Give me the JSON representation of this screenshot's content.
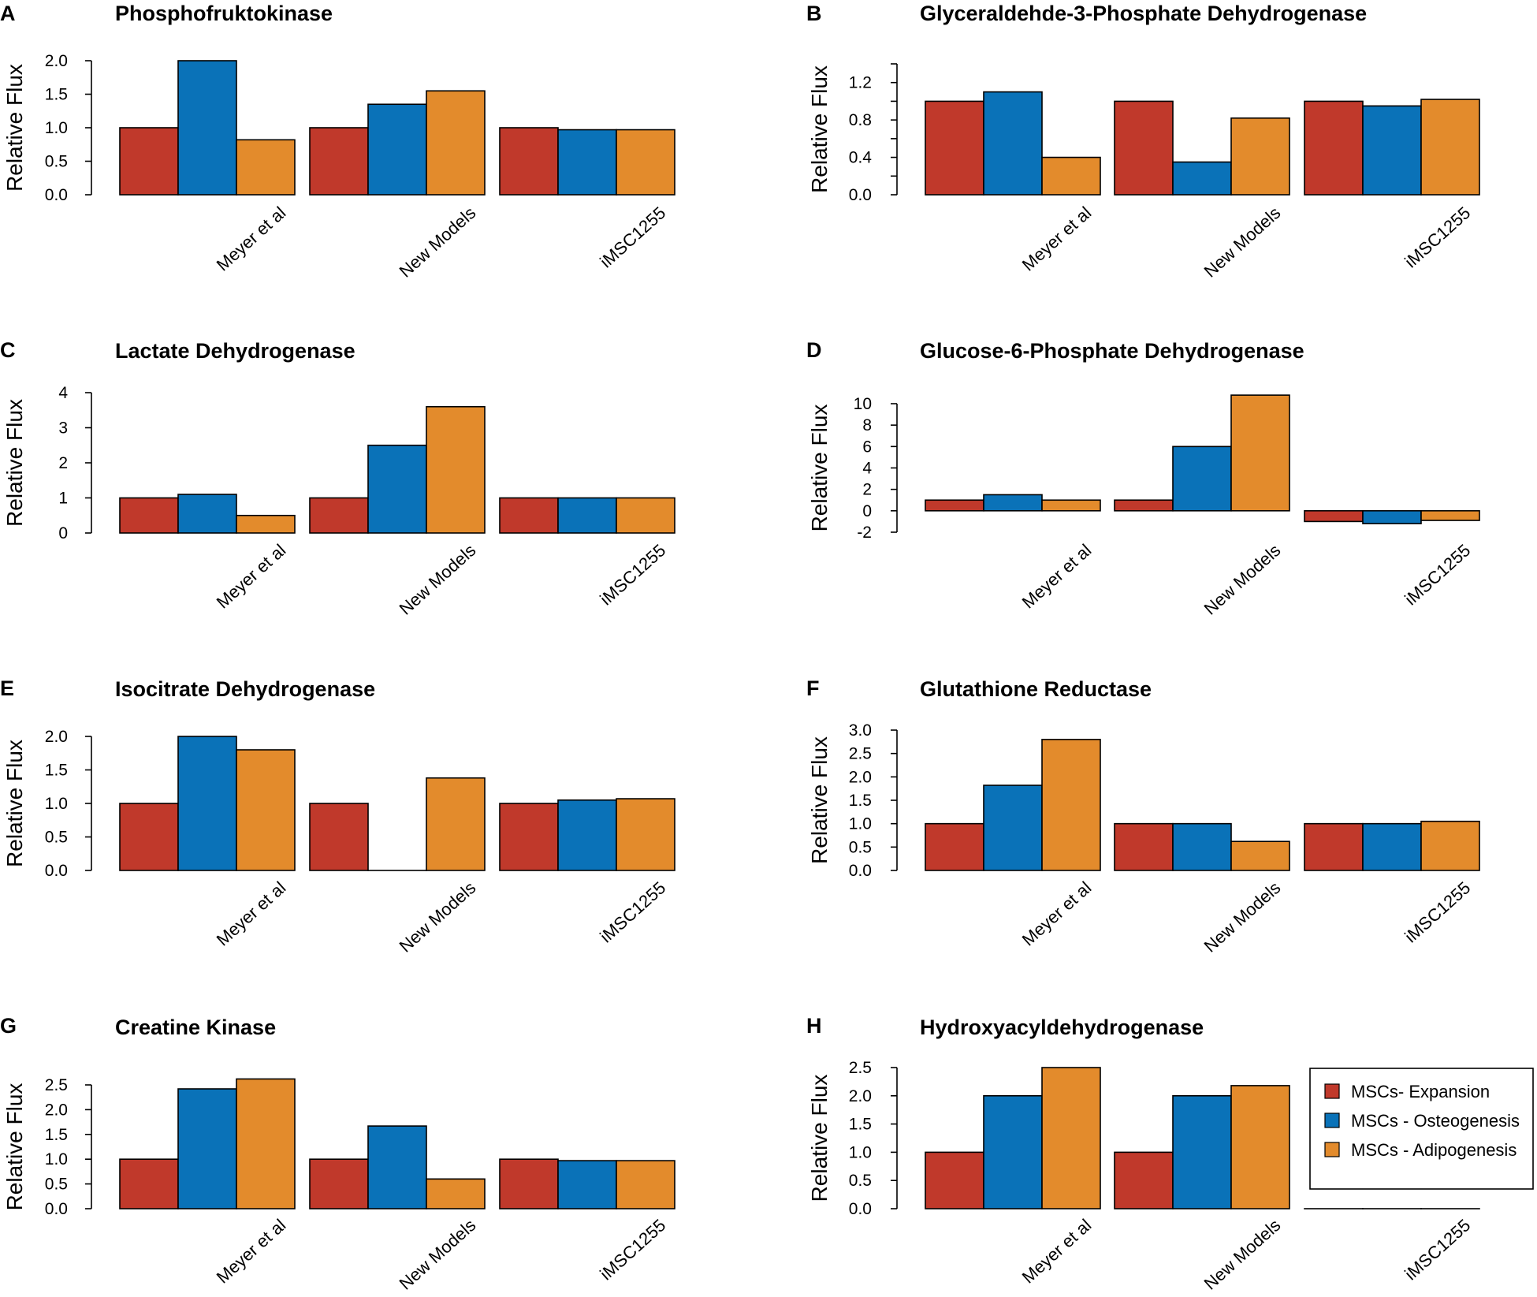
{
  "colors": {
    "expansion": "#c0392b",
    "osteogenesis": "#0a72b8",
    "adipogenesis": "#e38b2c",
    "outline": "#000000"
  },
  "legend": {
    "items": [
      {
        "label": "MSCs- Expansion",
        "color_key": "expansion"
      },
      {
        "label": "MSCs - Osteogenesis",
        "color_key": "osteogenesis"
      },
      {
        "label": "MSCs - Adipogenesis",
        "color_key": "adipogenesis"
      }
    ]
  },
  "chart_data": [
    {
      "panel": "A",
      "type": "bar",
      "title": "Phosphofruktokinase",
      "ylabel": "Relative Flux",
      "ylim": [
        0,
        2.0
      ],
      "yticks": [
        "0.0",
        "0.5",
        "1.0",
        "1.5",
        "2.0"
      ],
      "ytick_values": [
        0,
        0.5,
        1.0,
        1.5,
        2.0
      ],
      "categories": [
        "Meyer et al",
        "New Models",
        "iMSC1255"
      ],
      "series": [
        {
          "name": "MSCs- Expansion",
          "values": [
            1.0,
            1.0,
            1.0
          ]
        },
        {
          "name": "MSCs - Osteogenesis",
          "values": [
            2.0,
            1.35,
            0.97
          ]
        },
        {
          "name": "MSCs - Adipogenesis",
          "values": [
            0.82,
            1.55,
            0.97
          ]
        }
      ]
    },
    {
      "panel": "B",
      "type": "bar",
      "title": "Glyceraldehde-3-Phosphate Dehydrogenase",
      "ylabel": "Relative Flux",
      "ylim": [
        0,
        1.4
      ],
      "yticks": [
        "0.0",
        "0.4",
        "0.8",
        "1.2"
      ],
      "ytick_values": [
        0,
        0.4,
        0.8,
        1.2
      ],
      "minor_ticks": [
        0.2,
        0.6,
        1.0,
        1.4
      ],
      "categories": [
        "Meyer et al",
        "New Models",
        "iMSC1255"
      ],
      "series": [
        {
          "name": "MSCs- Expansion",
          "values": [
            1.0,
            1.0,
            1.0
          ]
        },
        {
          "name": "MSCs - Osteogenesis",
          "values": [
            1.1,
            0.35,
            0.95
          ]
        },
        {
          "name": "MSCs - Adipogenesis",
          "values": [
            0.4,
            0.82,
            1.02
          ]
        }
      ]
    },
    {
      "panel": "C",
      "type": "bar",
      "title": "Lactate Dehydrogenase",
      "ylabel": "Relative Flux",
      "ylim": [
        0,
        4
      ],
      "yticks": [
        "0",
        "1",
        "2",
        "3",
        "4"
      ],
      "ytick_values": [
        0,
        1,
        2,
        3,
        4
      ],
      "categories": [
        "Meyer et al",
        "New Models",
        "iMSC1255"
      ],
      "series": [
        {
          "name": "MSCs- Expansion",
          "values": [
            1.0,
            1.0,
            1.0
          ]
        },
        {
          "name": "MSCs - Osteogenesis",
          "values": [
            1.1,
            2.5,
            1.0
          ]
        },
        {
          "name": "MSCs - Adipogenesis",
          "values": [
            0.5,
            3.6,
            1.0
          ]
        }
      ]
    },
    {
      "panel": "D",
      "type": "bar",
      "title": "Glucose-6-Phosphate Dehydrogenase",
      "ylabel": "Relative Flux",
      "ylim": [
        -2,
        10
      ],
      "yticks": [
        "-2",
        "0",
        "2",
        "4",
        "6",
        "8",
        "10"
      ],
      "ytick_values": [
        -2,
        0,
        2,
        4,
        6,
        8,
        10
      ],
      "categories": [
        "Meyer et al",
        "New Models",
        "iMSC1255"
      ],
      "series": [
        {
          "name": "MSCs- Expansion",
          "values": [
            1.0,
            1.0,
            -1.0
          ]
        },
        {
          "name": "MSCs - Osteogenesis",
          "values": [
            1.5,
            6.0,
            -1.2
          ]
        },
        {
          "name": "MSCs - Adipogenesis",
          "values": [
            1.0,
            10.8,
            -0.9
          ]
        }
      ]
    },
    {
      "panel": "E",
      "type": "bar",
      "title": "Isocitrate Dehydrogenase",
      "ylabel": "Relative Flux",
      "ylim": [
        0,
        2.0
      ],
      "yticks": [
        "0.0",
        "0.5",
        "1.0",
        "1.5",
        "2.0"
      ],
      "ytick_values": [
        0,
        0.5,
        1.0,
        1.5,
        2.0
      ],
      "categories": [
        "Meyer et al",
        "New Models",
        "iMSC1255"
      ],
      "series": [
        {
          "name": "MSCs- Expansion",
          "values": [
            1.0,
            1.0,
            1.0
          ]
        },
        {
          "name": "MSCs - Osteogenesis",
          "values": [
            2.0,
            0.0,
            1.05
          ]
        },
        {
          "name": "MSCs - Adipogenesis",
          "values": [
            1.8,
            1.38,
            1.07
          ]
        }
      ]
    },
    {
      "panel": "F",
      "type": "bar",
      "title": "Glutathione Reductase",
      "ylabel": "Relative Flux",
      "ylim": [
        0,
        3.0
      ],
      "yticks": [
        "0.0",
        "0.5",
        "1.0",
        "1.5",
        "2.0",
        "2.5",
        "3.0"
      ],
      "ytick_values": [
        0,
        0.5,
        1.0,
        1.5,
        2.0,
        2.5,
        3.0
      ],
      "categories": [
        "Meyer et al",
        "New Models",
        "iMSC1255"
      ],
      "series": [
        {
          "name": "MSCs- Expansion",
          "values": [
            1.0,
            1.0,
            1.0
          ]
        },
        {
          "name": "MSCs - Osteogenesis",
          "values": [
            1.82,
            1.0,
            1.0
          ]
        },
        {
          "name": "MSCs - Adipogenesis",
          "values": [
            2.8,
            0.62,
            1.05
          ]
        }
      ]
    },
    {
      "panel": "G",
      "type": "bar",
      "title": "Creatine Kinase",
      "ylabel": "Relative Flux",
      "ylim": [
        0,
        2.5
      ],
      "yticks": [
        "0.0",
        "0.5",
        "1.0",
        "1.5",
        "2.0",
        "2.5"
      ],
      "ytick_values": [
        0,
        0.5,
        1.0,
        1.5,
        2.0,
        2.5
      ],
      "categories": [
        "Meyer et al",
        "New Models",
        "iMSC1255"
      ],
      "series": [
        {
          "name": "MSCs- Expansion",
          "values": [
            1.0,
            1.0,
            1.0
          ]
        },
        {
          "name": "MSCs - Osteogenesis",
          "values": [
            2.42,
            1.67,
            0.97
          ]
        },
        {
          "name": "MSCs - Adipogenesis",
          "values": [
            2.62,
            0.6,
            0.97
          ]
        }
      ]
    },
    {
      "panel": "H",
      "type": "bar",
      "title": "Hydroxyacyldehydrogenase",
      "ylabel": "Relative Flux",
      "ylim": [
        0,
        2.5
      ],
      "yticks": [
        "0.0",
        "0.5",
        "1.0",
        "1.5",
        "2.0",
        "2.5"
      ],
      "ytick_values": [
        0,
        0.5,
        1.0,
        1.5,
        2.0,
        2.5
      ],
      "categories": [
        "Meyer et al",
        "New Models",
        "iMSC1255"
      ],
      "series": [
        {
          "name": "MSCs- Expansion",
          "values": [
            1.0,
            1.0,
            0.0
          ]
        },
        {
          "name": "MSCs - Osteogenesis",
          "values": [
            2.0,
            2.0,
            0.0
          ]
        },
        {
          "name": "MSCs - Adipogenesis",
          "values": [
            2.5,
            2.18,
            0.0
          ]
        }
      ]
    }
  ]
}
